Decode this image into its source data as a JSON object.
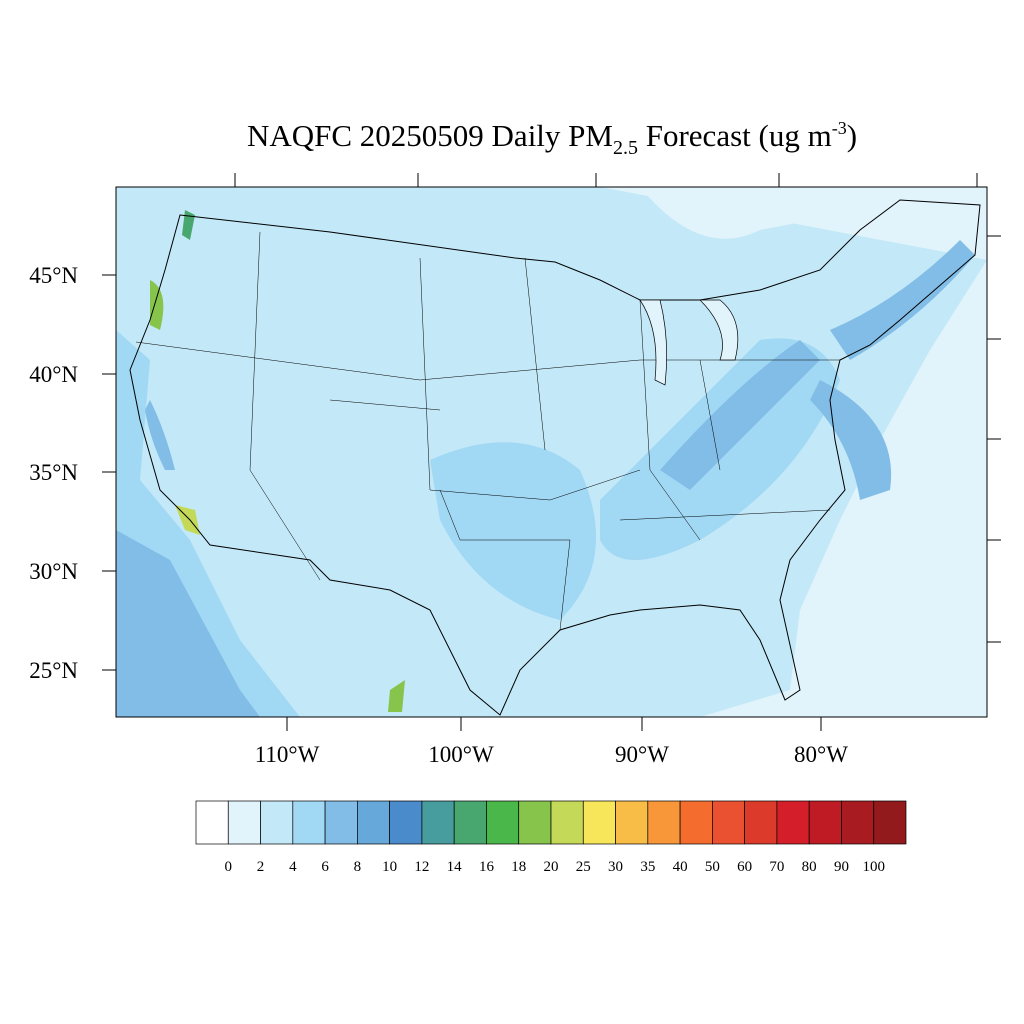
{
  "map": {
    "title": {
      "main": "NAQFC 20250509 Daily PM",
      "subscript": "2.5",
      "middle": " Forecast (ug m",
      "superscript": "-3",
      "end": ")"
    },
    "lat_labels": [
      "45°N",
      "40°N",
      "35°N",
      "30°N",
      "25°N"
    ],
    "lon_labels": [
      "110°W",
      "100°W",
      "90°W",
      "80°W"
    ],
    "colorbar": {
      "labels": [
        "0",
        "2",
        "4",
        "6",
        "8",
        "10",
        "12",
        "14",
        "16",
        "18",
        "20",
        "25",
        "30",
        "35",
        "40",
        "50",
        "60",
        "70",
        "80",
        "90",
        "100"
      ],
      "colors": [
        "#ffffff",
        "#e1f3fb",
        "#c3e8f8",
        "#a1d8f4",
        "#81bde6",
        "#67a8db",
        "#4a8bcb",
        "#479c9d",
        "#48a76f",
        "#4ab74a",
        "#86c44c",
        "#c4d957",
        "#f7e65a",
        "#f8bd46",
        "#f7973a",
        "#f46d2f",
        "#ea5130",
        "#dc3a2a",
        "#d41f2a",
        "#be1b25",
        "#a81c21",
        "#921a1c"
      ]
    }
  }
}
